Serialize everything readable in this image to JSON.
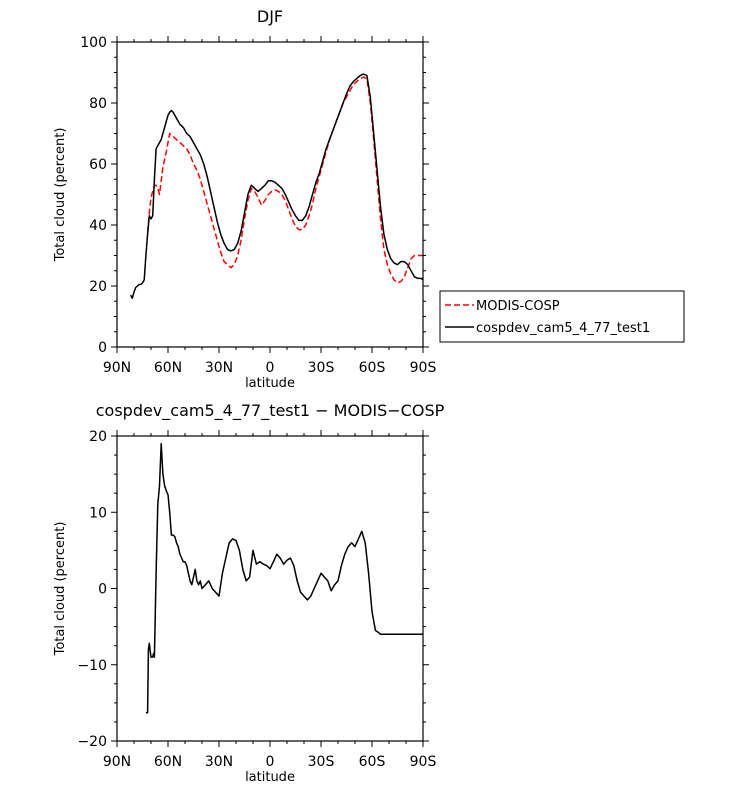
{
  "chart_data": [
    {
      "type": "line",
      "title": "DJF",
      "xlabel": "latitude",
      "ylabel": "Total cloud (percent)",
      "xlim": [
        90,
        -90
      ],
      "ylim": [
        0,
        100
      ],
      "xticks": [
        90,
        60,
        30,
        0,
        -30,
        -60,
        -90
      ],
      "xtick_labels": [
        "90N",
        "60N",
        "30N",
        "0",
        "30S",
        "60S",
        "90S"
      ],
      "yticks": [
        0,
        20,
        40,
        60,
        80,
        100
      ],
      "ytick_labels": [
        "0",
        "20",
        "40",
        "60",
        "80",
        "100"
      ],
      "legend_position": "right",
      "series": [
        {
          "name": "MODIS-COSP",
          "color": "#ff0000",
          "dash": "dashed",
          "x": [
            72,
            71,
            70,
            69,
            68,
            67,
            66,
            65,
            63,
            61,
            59,
            57,
            55,
            53,
            51,
            49,
            47,
            45,
            43,
            41,
            39,
            37,
            35,
            33,
            31,
            29,
            27,
            25,
            23,
            21,
            19,
            17,
            15,
            13,
            11,
            9,
            7,
            5,
            3,
            1,
            -1,
            -3,
            -5,
            -7,
            -9,
            -11,
            -13,
            -15,
            -17,
            -19,
            -21,
            -23,
            -25,
            -27,
            -29,
            -31,
            -33,
            -35,
            -37,
            -39,
            -41,
            -43,
            -45,
            -47,
            -49,
            -51,
            -53,
            -55,
            -57,
            -59,
            -61,
            -63,
            -65,
            -67,
            -69,
            -71,
            -73,
            -75,
            -77,
            -79,
            -81,
            -83,
            -85,
            -87,
            -89,
            -90
          ],
          "y": [
            37.5,
            44,
            49,
            51,
            53,
            53,
            52,
            50,
            59,
            64,
            70,
            69,
            68,
            67,
            66,
            65,
            63,
            60,
            58,
            55,
            51,
            47,
            43,
            39,
            35,
            31,
            28,
            27,
            26,
            27,
            30,
            35,
            42,
            48,
            52,
            51,
            49,
            46.5,
            48,
            50,
            51,
            51.5,
            51,
            50,
            48,
            45,
            42,
            39.5,
            38.5,
            38.5,
            40,
            43,
            47,
            52,
            56,
            60,
            64,
            68,
            71,
            74,
            77,
            80,
            82,
            84,
            86,
            87,
            88,
            88.5,
            88,
            80,
            68,
            55,
            42,
            32,
            27,
            24,
            22,
            21,
            21.5,
            23,
            26,
            29,
            30,
            30,
            30,
            30
          ]
        },
        {
          "name": "cospdev_cam5_4_77_test1",
          "color": "#000000",
          "dash": "solid",
          "x": [
            82,
            81,
            80,
            79,
            78,
            77,
            76,
            75,
            74,
            73,
            72,
            71,
            70,
            69,
            68,
            67,
            66,
            65,
            64,
            63,
            62,
            61,
            60,
            59,
            58,
            57,
            55,
            53,
            51,
            49,
            47,
            45,
            43,
            41,
            39,
            37,
            35,
            33,
            31,
            29,
            27,
            25,
            23,
            21,
            19,
            17,
            15,
            13,
            11,
            9,
            7,
            5,
            3,
            1,
            -1,
            -3,
            -5,
            -7,
            -9,
            -11,
            -13,
            -15,
            -17,
            -19,
            -21,
            -23,
            -25,
            -27,
            -29,
            -31,
            -33,
            -35,
            -37,
            -39,
            -41,
            -43,
            -45,
            -47,
            -49,
            -51,
            -53,
            -55,
            -57,
            -59,
            -61,
            -63,
            -65,
            -67,
            -69,
            -71,
            -73,
            -75,
            -77,
            -79,
            -81,
            -83,
            -85,
            -87,
            -89,
            -90
          ],
          "y": [
            17,
            16,
            18,
            19.5,
            20,
            20.5,
            20.5,
            21,
            22,
            30,
            37,
            43,
            42,
            43,
            55,
            65,
            66,
            67,
            68,
            70,
            72,
            74,
            76,
            77,
            77.5,
            77,
            75,
            73,
            72,
            70,
            69,
            67,
            65,
            63,
            60,
            56,
            51,
            46,
            41,
            37,
            34,
            32,
            31.5,
            32,
            34,
            38,
            44,
            50,
            53,
            52,
            51,
            52,
            53,
            54.5,
            54.5,
            54,
            53,
            52,
            50,
            47.5,
            45,
            43,
            41.5,
            41.5,
            43,
            46,
            50,
            54,
            57,
            61,
            65,
            68,
            71,
            74,
            77,
            80,
            83,
            85.5,
            87,
            88,
            89,
            89.5,
            89,
            82,
            70,
            58,
            46,
            37,
            32,
            29,
            27.5,
            27,
            28,
            28,
            27,
            25,
            23,
            22.5,
            22.5,
            22
          ]
        }
      ]
    },
    {
      "type": "line",
      "title": "cospdev_cam5_4_77_test1 − MODIS−COSP",
      "xlabel": "latitude",
      "ylabel": "Total cloud (percent)",
      "xlim": [
        90,
        -90
      ],
      "ylim": [
        -20,
        20
      ],
      "xticks": [
        90,
        60,
        30,
        0,
        -30,
        -60,
        -90
      ],
      "xtick_labels": [
        "90N",
        "60N",
        "30N",
        "0",
        "30S",
        "60S",
        "90S"
      ],
      "yticks": [
        -20,
        -10,
        0,
        10,
        20
      ],
      "ytick_labels": [
        "−20",
        "−10",
        "0",
        "10",
        "20"
      ],
      "series": [
        {
          "name": "",
          "color": "#000000",
          "dash": "solid",
          "x": [
            73,
            72,
            71.5,
            71,
            70,
            69,
            68.5,
            68,
            67,
            66,
            65,
            64,
            63,
            62,
            61,
            60,
            59,
            58,
            57,
            56,
            55,
            54,
            53,
            52,
            51,
            50,
            49,
            48,
            47,
            46,
            45,
            44,
            43,
            42,
            41,
            40,
            38,
            36,
            34,
            32,
            30,
            28,
            26,
            24,
            22,
            20,
            18,
            16,
            14,
            12,
            10,
            8,
            6,
            4,
            2,
            0,
            -2,
            -4,
            -6,
            -8,
            -10,
            -12,
            -14,
            -16,
            -18,
            -20,
            -22,
            -24,
            -26,
            -28,
            -30,
            -32,
            -34,
            -36,
            -38,
            -40,
            -42,
            -44,
            -46,
            -48,
            -50,
            -52,
            -54,
            -56,
            -58,
            -60,
            -62,
            -64,
            -65,
            -66,
            -68,
            -70,
            -72,
            -74,
            -76,
            -78,
            -80,
            -82,
            -84,
            -86,
            -87,
            -88,
            -89,
            -90
          ],
          "y": [
            -16.3,
            -16.3,
            -8,
            -7.2,
            -9,
            -9,
            -8.5,
            -9,
            2,
            11,
            13.5,
            19,
            15,
            13.5,
            12.8,
            12.3,
            10,
            7,
            7,
            6.8,
            6,
            5.5,
            4.5,
            4,
            3.5,
            3.5,
            3,
            2,
            1,
            0.5,
            1.5,
            2.5,
            1,
            0.5,
            1,
            0,
            0.5,
            1,
            0,
            -0.5,
            -1,
            2,
            4,
            6,
            6.5,
            6.3,
            5,
            2.5,
            1,
            1.5,
            5,
            3.2,
            3.5,
            3.2,
            3.0,
            2.6,
            3.5,
            4.5,
            4,
            3.2,
            3.7,
            4,
            3,
            1,
            -0.5,
            -1,
            -1.5,
            -1,
            0,
            1,
            2,
            1.5,
            1,
            -0.3,
            0.5,
            1,
            3,
            4.5,
            5.5,
            6,
            5.5,
            6.5,
            7.5,
            6,
            2,
            -3,
            -5.5,
            -5.8,
            -6,
            -6,
            -6,
            -6,
            -6,
            -6,
            -6,
            -6,
            -6,
            -6,
            -6,
            -6,
            -6,
            -6,
            -6,
            -6
          ]
        }
      ]
    }
  ]
}
